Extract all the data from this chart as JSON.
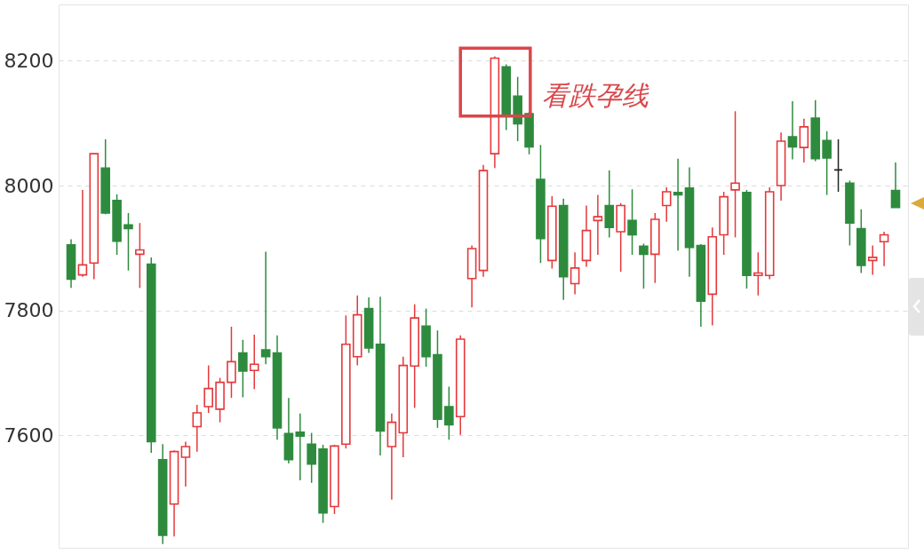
{
  "chart_data": {
    "type": "candlestick",
    "categories": [
      null,
      null,
      null,
      null,
      null,
      null,
      null,
      null,
      null,
      null,
      null,
      null,
      null,
      null,
      null,
      null,
      null,
      null,
      null,
      null,
      null,
      null,
      null,
      null,
      null,
      null,
      null,
      null,
      null,
      null,
      null,
      null,
      null,
      null,
      null,
      null,
      null,
      null,
      null,
      null,
      null,
      null,
      null,
      null,
      null,
      null,
      null,
      null,
      null,
      null,
      null,
      null,
      null,
      null,
      null,
      null,
      null,
      null,
      null,
      null,
      null,
      null,
      null,
      null,
      null,
      null,
      null,
      null,
      null,
      null,
      null,
      null,
      null
    ],
    "ohlc": [
      [
        7905,
        7914,
        7836,
        7850
      ],
      [
        7857,
        7993,
        7854,
        7873
      ],
      [
        7876,
        8051,
        7850,
        8051
      ],
      [
        8028,
        8074,
        7954,
        7956
      ],
      [
        7976,
        7986,
        7889,
        7911
      ],
      [
        7937,
        7956,
        7864,
        7931
      ],
      [
        7890,
        7940,
        7836,
        7897
      ],
      [
        7874,
        7885,
        7572,
        7590
      ],
      [
        7561,
        7586,
        7426,
        7440
      ],
      [
        7490,
        7576,
        7438,
        7574
      ],
      [
        7565,
        7590,
        7518,
        7582
      ],
      [
        7614,
        7649,
        7574,
        7636
      ],
      [
        7646,
        7712,
        7636,
        7675
      ],
      [
        7642,
        7692,
        7621,
        7685
      ],
      [
        7685,
        7774,
        7660,
        7718
      ],
      [
        7732,
        7753,
        7661,
        7703
      ],
      [
        7704,
        7761,
        7674,
        7714
      ],
      [
        7737,
        7894,
        7714,
        7726
      ],
      [
        7732,
        7760,
        7593,
        7612
      ],
      [
        7603,
        7660,
        7555,
        7561
      ],
      [
        7605,
        7635,
        7528,
        7599
      ],
      [
        7586,
        7604,
        7524,
        7554
      ],
      [
        7578,
        7585,
        7460,
        7476
      ],
      [
        7486,
        7585,
        7474,
        7583
      ],
      [
        7586,
        7792,
        7579,
        7746
      ],
      [
        7726,
        7824,
        7712,
        7793
      ],
      [
        7803,
        7821,
        7732,
        7740
      ],
      [
        7746,
        7822,
        7568,
        7607
      ],
      [
        7582,
        7635,
        7497,
        7621
      ],
      [
        7604,
        7726,
        7565,
        7712
      ],
      [
        7711,
        7810,
        7644,
        7788
      ],
      [
        7775,
        7803,
        7710,
        7726
      ],
      [
        7729,
        7768,
        7612,
        7626
      ],
      [
        7646,
        7678,
        7593,
        7617
      ],
      [
        7630,
        7760,
        7601,
        7754
      ],
      [
        7851,
        7904,
        7805,
        7899
      ],
      [
        7864,
        8033,
        7854,
        8024
      ],
      [
        8051,
        8207,
        8028,
        8204
      ],
      [
        8190,
        8194,
        8089,
        8114
      ],
      [
        8143,
        8174,
        8071,
        8099
      ],
      [
        8115,
        8118,
        8050,
        8062
      ],
      [
        8010,
        8065,
        7876,
        7915
      ],
      [
        7880,
        7983,
        7867,
        7967
      ],
      [
        7968,
        7979,
        7817,
        7854
      ],
      [
        7843,
        7893,
        7826,
        7868
      ],
      [
        7880,
        7968,
        7870,
        7928
      ],
      [
        7944,
        7985,
        7889,
        7950
      ],
      [
        7968,
        8024,
        7917,
        7933
      ],
      [
        7926,
        7972,
        7862,
        7968
      ],
      [
        7944,
        7994,
        7889,
        7921
      ],
      [
        7903,
        7907,
        7835,
        7890
      ],
      [
        7890,
        7956,
        7844,
        7946
      ],
      [
        7968,
        7997,
        7942,
        7990
      ],
      [
        7989,
        8043,
        7896,
        7985
      ],
      [
        7996,
        8029,
        7854,
        7901
      ],
      [
        7904,
        7906,
        7774,
        7815
      ],
      [
        7826,
        7933,
        7776,
        7918
      ],
      [
        7921,
        7990,
        7889,
        7982
      ],
      [
        7993,
        8119,
        7917,
        8004
      ],
      [
        7989,
        7993,
        7835,
        7856
      ],
      [
        7856,
        7893,
        7824,
        7860
      ],
      [
        7856,
        7997,
        7850,
        7990
      ],
      [
        8000,
        8085,
        7976,
        8071
      ],
      [
        8078,
        8135,
        8042,
        8062
      ],
      [
        8061,
        8107,
        8037,
        8094
      ],
      [
        8108,
        8137,
        8039,
        8043
      ],
      [
        8072,
        8087,
        7985,
        8044
      ],
      [
        8025,
        8074,
        7990,
        8025
      ],
      [
        8004,
        8008,
        7904,
        7940
      ],
      [
        7931,
        7962,
        7860,
        7872
      ],
      [
        7880,
        7904,
        7857,
        7885
      ],
      [
        7910,
        7926,
        7871,
        7921
      ],
      [
        7992,
        8037,
        7965,
        7965
      ]
    ],
    "colors": [
      "#2e8b3e",
      "#e5383b",
      "#e5383b",
      "#2e8b3e",
      "#2e8b3e",
      "#2e8b3e",
      "#e5383b",
      "#2e8b3e",
      "#2e8b3e",
      "#e5383b",
      "#e5383b",
      "#e5383b",
      "#e5383b",
      "#e5383b",
      "#e5383b",
      "#2e8b3e",
      "#e5383b",
      "#2e8b3e",
      "#2e8b3e",
      "#2e8b3e",
      "#2e8b3e",
      "#2e8b3e",
      "#2e8b3e",
      "#e5383b",
      "#e5383b",
      "#e5383b",
      "#2e8b3e",
      "#2e8b3e",
      "#e5383b",
      "#e5383b",
      "#e5383b",
      "#2e8b3e",
      "#2e8b3e",
      "#2e8b3e",
      "#e5383b",
      "#e5383b",
      "#e5383b",
      "#e5383b",
      "#2e8b3e",
      "#2e8b3e",
      "#2e8b3e",
      "#2e8b3e",
      "#e5383b",
      "#2e8b3e",
      "#e5383b",
      "#e5383b",
      "#e5383b",
      "#2e8b3e",
      "#e5383b",
      "#2e8b3e",
      "#2e8b3e",
      "#e5383b",
      "#e5383b",
      "#2e8b3e",
      "#2e8b3e",
      "#2e8b3e",
      "#e5383b",
      "#e5383b",
      "#e5383b",
      "#2e8b3e",
      "#e5383b",
      "#e5383b",
      "#e5383b",
      "#2e8b3e",
      "#e5383b",
      "#2e8b3e",
      "#2e8b3e",
      "#222222",
      "#2e8b3e",
      "#2e8b3e",
      "#e5383b",
      "#e5383b",
      "#2e8b3e"
    ],
    "ylim": [
      7420,
      8290
    ],
    "yticks": [
      7600,
      7800,
      8000,
      8200
    ],
    "grid": "y",
    "annotations": [
      "看跌孕线"
    ]
  }
}
